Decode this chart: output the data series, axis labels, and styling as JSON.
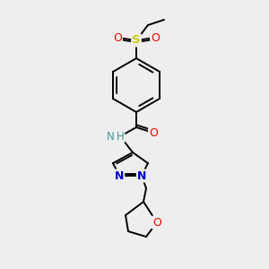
{
  "background_color": "#eeeeee",
  "atom_colors": {
    "C": "#000000",
    "N": "#0000cc",
    "O": "#ff0000",
    "S": "#cccc00",
    "H": "#4a9a9a"
  },
  "bond_color": "#000000",
  "figsize": [
    3.0,
    3.0
  ],
  "dpi": 100,
  "lw": 1.4
}
